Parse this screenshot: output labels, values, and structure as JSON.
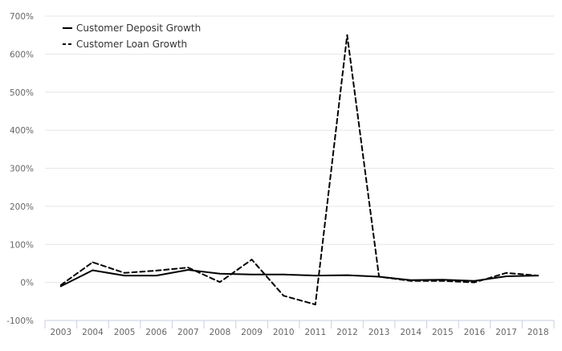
{
  "chart_data": {
    "type": "line",
    "title": "",
    "xlabel": "",
    "ylabel": "",
    "x": [
      "2003",
      "2004",
      "2005",
      "2006",
      "2007",
      "2008",
      "2009",
      "2010",
      "2011",
      "2012",
      "2013",
      "2014",
      "2015",
      "2016",
      "2017",
      "2018"
    ],
    "yticks": [
      "-100%",
      "0%",
      "100%",
      "200%",
      "300%",
      "400%",
      "500%",
      "600%",
      "700%"
    ],
    "ylim": [
      -100,
      700
    ],
    "grid": "horizontal",
    "legend_position": "top-left",
    "series": [
      {
        "name": "Customer Deposit Growth",
        "style": "solid",
        "color": "#000000",
        "values": [
          -10,
          32,
          18,
          18,
          33,
          23,
          21,
          21,
          18,
          19,
          15,
          6,
          7,
          4,
          16,
          18
        ]
      },
      {
        "name": "Customer Loan Growth",
        "style": "dashed",
        "color": "#000000",
        "values": [
          -7,
          53,
          25,
          31,
          39,
          1,
          60,
          -35,
          -58,
          650,
          15,
          4,
          4,
          0,
          25,
          18
        ]
      }
    ]
  }
}
